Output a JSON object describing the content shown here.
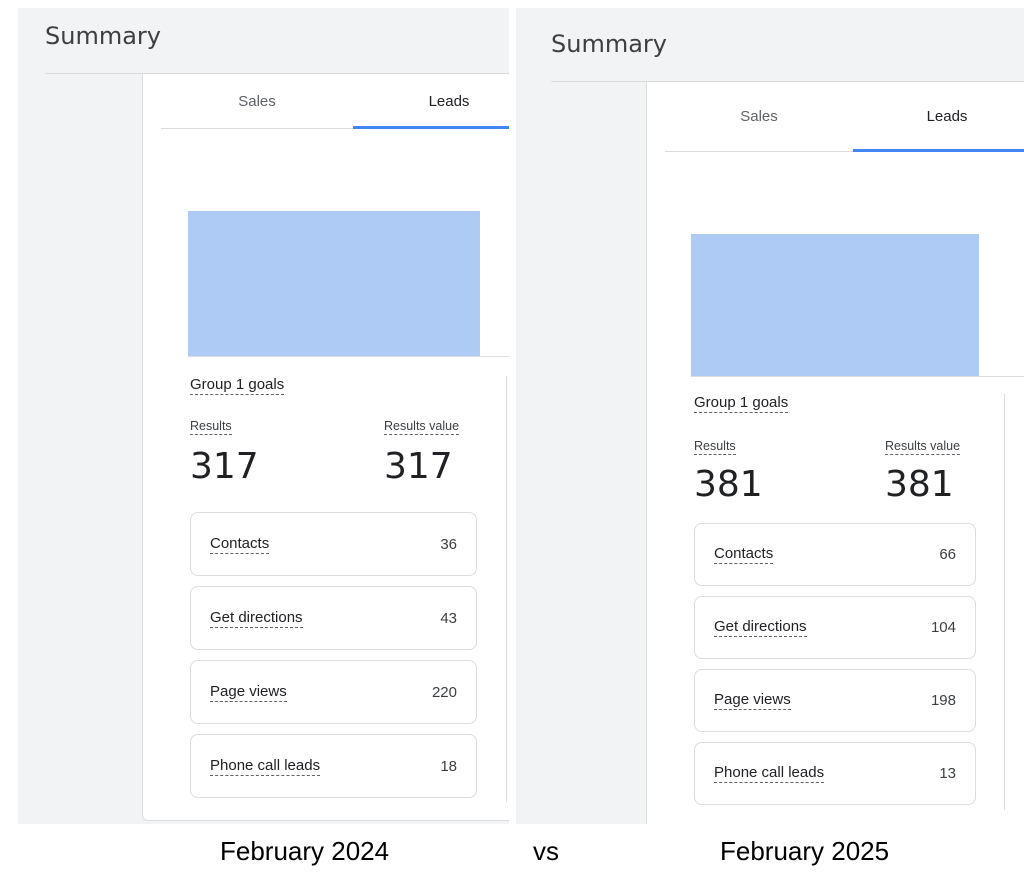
{
  "panels": [
    {
      "summary_title": "Summary",
      "tabs": [
        "Sales",
        "Leads"
      ],
      "active_tab": "Leads",
      "group_title": "Group 1 goals",
      "results_label": "Results",
      "results_value_label": "Results value",
      "results": "317",
      "results_value": "317",
      "goals": [
        {
          "name": "Contacts",
          "count": "36"
        },
        {
          "name": "Get directions",
          "count": "43"
        },
        {
          "name": "Page views",
          "count": "220"
        },
        {
          "name": "Phone call leads",
          "count": "18"
        }
      ],
      "caption": "February 2024"
    },
    {
      "summary_title": "Summary",
      "tabs": [
        "Sales",
        "Leads"
      ],
      "active_tab": "Leads",
      "group_title": "Group 1 goals",
      "results_label": "Results",
      "results_value_label": "Results value",
      "results": "381",
      "results_value": "381",
      "goals": [
        {
          "name": "Contacts",
          "count": "66"
        },
        {
          "name": "Get directions",
          "count": "104"
        },
        {
          "name": "Page views",
          "count": "198"
        },
        {
          "name": "Phone call leads",
          "count": "13"
        }
      ],
      "caption": "February 2025"
    }
  ],
  "vs_label": "vs",
  "colors": {
    "accent": "#4285f4",
    "chart_fill": "#aecbf6",
    "background": "#f1f3f4"
  }
}
